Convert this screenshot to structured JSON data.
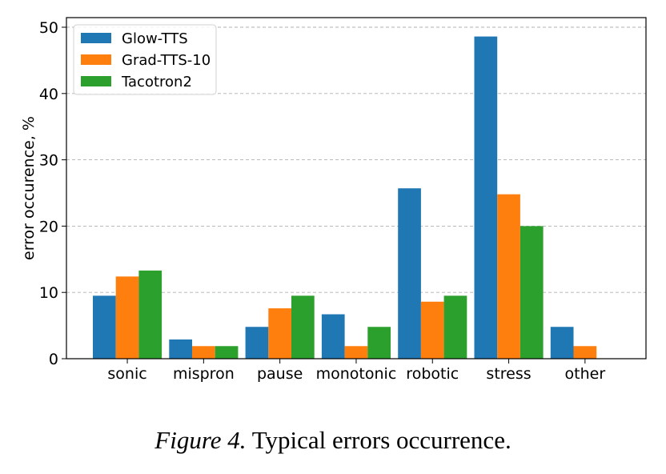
{
  "chart_data": {
    "type": "bar",
    "title": "",
    "xlabel": "",
    "ylabel": "error occurence, %",
    "ylim": [
      0,
      50
    ],
    "yticks": [
      0,
      10,
      20,
      30,
      40,
      50
    ],
    "grid": "y-dashed",
    "legend_position": "top-left",
    "categories": [
      "sonic",
      "mispron",
      "pause",
      "monotonic",
      "robotic",
      "stress",
      "other"
    ],
    "series": [
      {
        "name": "Glow-TTS",
        "color": "#1f77b4",
        "values": [
          9.5,
          2.9,
          4.8,
          6.7,
          25.7,
          48.6,
          4.8
        ]
      },
      {
        "name": "Grad-TTS-10",
        "color": "#ff7f0e",
        "values": [
          12.4,
          1.9,
          7.6,
          1.9,
          8.6,
          24.8,
          1.9
        ]
      },
      {
        "name": "Tacotron2",
        "color": "#2ca02c",
        "values": [
          13.3,
          1.9,
          9.5,
          4.8,
          9.5,
          20.0,
          0
        ]
      }
    ]
  },
  "caption": {
    "label": "Figure 4.",
    "text": "Typical errors occurrence."
  }
}
